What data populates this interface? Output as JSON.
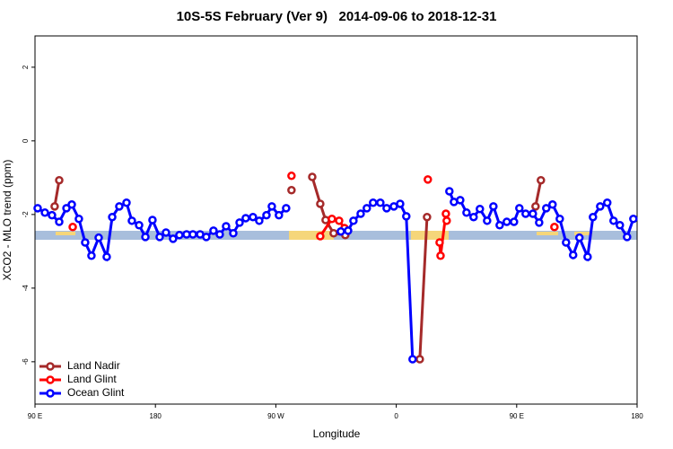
{
  "chart_data": {
    "type": "line",
    "title": "10S-5S February (Ver 9)   2014-09-06 to 2018-12-31",
    "x_label": "Longitude",
    "y_label": "XCO2 - MLO trend (ppm)",
    "xlim": [
      90,
      540
    ],
    "xticks": [
      {
        "value": 90,
        "label": "90 E"
      },
      {
        "value": 180,
        "label": "180"
      },
      {
        "value": 270,
        "label": "90 W"
      },
      {
        "value": 360,
        "label": "0"
      },
      {
        "value": 450,
        "label": "90 E"
      },
      {
        "value": 540,
        "label": "180"
      }
    ],
    "ylim": [
      -7.15,
      2.85
    ],
    "yticks": [
      2,
      0,
      -2,
      -4,
      -6
    ],
    "legend": "bottom-left",
    "series": [
      {
        "name": "Land Nadir",
        "color": "#a52a2a",
        "x": [
          104.7,
          108.1,
          200,
          281.7,
          290,
          297.2,
          303.2,
          307.2,
          313.2,
          321.9,
          350,
          377.6,
          383.0,
          450,
          464.1,
          468.1
        ],
        "values": [
          -1.78,
          -1.07,
          null,
          -1.34,
          null,
          -0.98,
          -1.71,
          -2.15,
          -2.51,
          -2.56,
          null,
          -5.93,
          -2.07,
          null,
          -1.78,
          -1.07
        ]
      },
      {
        "name": "Land Glint",
        "color": "#ff0000",
        "x": [
          118.2,
          200,
          281.7,
          290,
          303.2,
          311.9,
          317.3,
          321.3,
          350,
          383.6,
          388,
          392.4,
          393.1,
          397.1,
          397.7,
          450,
          478.2
        ],
        "values": [
          -2.34,
          null,
          -0.95,
          null,
          -2.59,
          -2.12,
          -2.17,
          -2.37,
          null,
          -1.05,
          null,
          -2.76,
          -3.12,
          -1.98,
          -2.17,
          null,
          -2.34
        ]
      },
      {
        "name": "Ocean Glint",
        "color": "#0000ff",
        "x": [
          92.0,
          97.4,
          102.7,
          108.1,
          113.5,
          117.5,
          122.8,
          127.5,
          132.2,
          137.6,
          143.6,
          147.7,
          153.0,
          158.4,
          162.4,
          167.8,
          172.5,
          177.8,
          183.2,
          187.9,
          193.2,
          197.9,
          203.3,
          208.0,
          213.4,
          218.0,
          223.4,
          228.1,
          232.8,
          238.2,
          242.9,
          247.5,
          252.9,
          257.6,
          263.0,
          267.0,
          272.3,
          277.7,
          300,
          318.6,
          324.0,
          328.0,
          333.4,
          338.0,
          342.7,
          348.1,
          352.8,
          358.2,
          362.9,
          367.5,
          372.2,
          385,
          399.7,
          403.1,
          407.8,
          412.5,
          417.8,
          422.5,
          427.9,
          432.6,
          437.3,
          442.6,
          448.0,
          452.0,
          456.7,
          462.1,
          466.8,
          472.1,
          476.8,
          482.2,
          486.9,
          492.2,
          496.9,
          503.0,
          507.0,
          512.4,
          517.7,
          522.4,
          527.1,
          532.5,
          537.2
        ],
        "values": [
          -1.83,
          -1.95,
          -2.02,
          -2.2,
          -1.83,
          -1.73,
          -2.12,
          -2.76,
          -3.12,
          -2.63,
          -3.15,
          -2.07,
          -1.78,
          -1.68,
          -2.17,
          -2.29,
          -2.61,
          -2.15,
          -2.61,
          -2.49,
          -2.66,
          -2.56,
          -2.54,
          -2.54,
          -2.54,
          -2.61,
          -2.44,
          -2.54,
          -2.32,
          -2.51,
          -2.22,
          -2.1,
          -2.07,
          -2.17,
          -2.02,
          -1.78,
          -2.02,
          -1.83,
          null,
          -2.46,
          -2.44,
          -2.17,
          -1.98,
          -1.83,
          -1.68,
          -1.68,
          -1.83,
          -1.78,
          -1.71,
          -2.05,
          -5.93,
          null,
          -1.37,
          -1.66,
          -1.61,
          -1.95,
          -2.07,
          -1.85,
          -2.17,
          -1.78,
          -2.29,
          -2.2,
          -2.2,
          -1.83,
          -1.98,
          -1.98,
          -2.22,
          -1.83,
          -1.73,
          -2.12,
          -2.76,
          -3.1,
          -2.63,
          -3.15,
          -2.07,
          -1.78,
          -1.68,
          -2.17,
          -2.29,
          -2.61,
          -2.12
        ]
      }
    ]
  }
}
